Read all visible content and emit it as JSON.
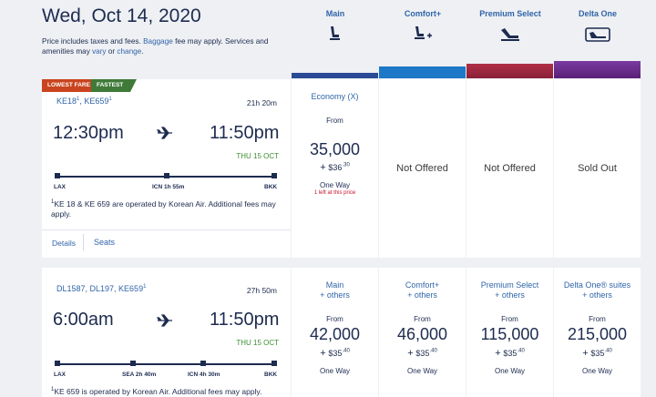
{
  "header": {
    "date": "Wed, Oct 14, 2020",
    "note_pre": "Price includes taxes and fees. ",
    "note_link1": "Baggage",
    "note_mid": " fee may apply. Services and amenities may ",
    "note_link2": "vary",
    "note_or": " or ",
    "note_link3": "change",
    "note_end": "."
  },
  "columns": [
    {
      "label": "Main",
      "icon": "main-seat-icon"
    },
    {
      "label": "Comfort+",
      "icon": "comfort-plus-seat-icon"
    },
    {
      "label": "Premium Select",
      "icon": "premium-select-seat-icon"
    },
    {
      "label": "Delta One",
      "icon": "delta-one-suite-icon"
    }
  ],
  "colors": {
    "main": "#2b4a96",
    "comfort": "#1e78c8",
    "premium": "#a02840",
    "deltaone": "#6a2a8c"
  },
  "flight1": {
    "tag_lowest": "LOWEST FARE",
    "tag_fastest": "FASTEST",
    "flight_a": "KE18",
    "sup_a": "1",
    "sep": ", ",
    "flight_b": "KE659",
    "sup_b": "1",
    "duration": "21h 20m",
    "depart": "12:30pm",
    "arrive": "11:50pm",
    "arrive_date": "THU 15 OCT",
    "origin": "LAX",
    "stop": "ICN 1h 55m",
    "dest": "BKK",
    "op_sup": "1",
    "op_note": "KE 18 & KE 659 are operated by Korean Air. Additional fees may apply.",
    "details": "Details",
    "seats": "Seats",
    "fares": {
      "main_title": "Economy (X)",
      "from": "From",
      "miles": "35,000",
      "plus": "+",
      "fee": "$36",
      "fee_cents": ".30",
      "oneway": "One Way",
      "left": "1 left at this price",
      "comfort": "Not Offered",
      "premium": "Not Offered",
      "deltaone": "Sold Out"
    }
  },
  "flight2": {
    "flights": "DL1587, DL197, KE659",
    "sup": "1",
    "duration": "27h 50m",
    "depart": "6:00am",
    "arrive": "11:50pm",
    "arrive_date": "THU 15 OCT",
    "origin": "LAX",
    "stop1": "SEA 2h 40m",
    "stop2": "ICN 4h 30m",
    "dest": "BKK",
    "op_sup": "1",
    "op_note": "KE 659 is operated by Korean Air. Additional fees may apply.",
    "fares": [
      {
        "title1": "Main",
        "title2": "+ others",
        "from": "From",
        "miles": "42,000",
        "plus": "+",
        "fee": "$35",
        "cents": ".40",
        "oneway": "One Way"
      },
      {
        "title1": "Comfort+",
        "title2": "+ others",
        "from": "From",
        "miles": "46,000",
        "plus": "+",
        "fee": "$35",
        "cents": ".40",
        "oneway": "One Way"
      },
      {
        "title1": "Premium Select",
        "title2": "+ others",
        "from": "From",
        "miles": "115,000",
        "plus": "+",
        "fee": "$35",
        "cents": ".40",
        "oneway": "One Way"
      },
      {
        "title1": "Delta One® suites",
        "title2": "+ others",
        "from": "From",
        "miles": "215,000",
        "plus": "+",
        "fee": "$35",
        "cents": ".40",
        "oneway": "One Way"
      }
    ]
  }
}
